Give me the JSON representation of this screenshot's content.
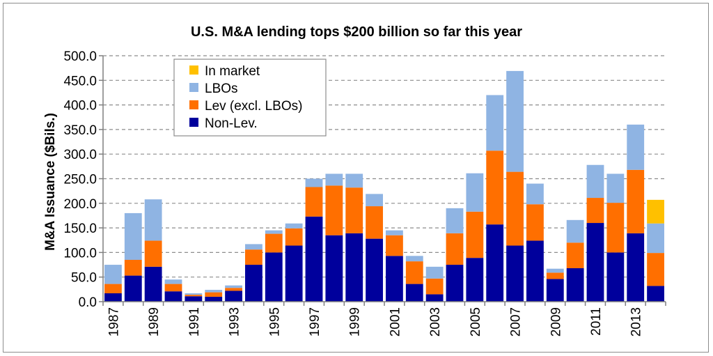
{
  "chart_data": {
    "type": "bar",
    "stacked": true,
    "title": "U.S. M&A lending tops $200 billion so far this year",
    "ylabel": "M&A Issuance ($Bils.)",
    "xlabel": "",
    "ylim": [
      0,
      500
    ],
    "yticks": [
      "0.0",
      "50.0",
      "100.0",
      "150.0",
      "200.0",
      "250.0",
      "300.0",
      "350.0",
      "400.0",
      "450.0",
      "500.0"
    ],
    "grid": true,
    "legend_position": "top-left",
    "categories": [
      "1987",
      "1988",
      "1989",
      "1990",
      "1991",
      "1992",
      "1993",
      "1994",
      "1995",
      "1996",
      "1997",
      "1998",
      "1999",
      "2000",
      "2001",
      "2002",
      "2003",
      "2004",
      "2005",
      "2006",
      "2007",
      "2008",
      "2009",
      "2010",
      "2011",
      "2012",
      "2013",
      "2014"
    ],
    "xtick_labels": [
      "1987",
      "",
      "1989",
      "",
      "1991",
      "",
      "1993",
      "",
      "1995",
      "",
      "1997",
      "",
      "1999",
      "",
      "2001",
      "",
      "2003",
      "",
      "2005",
      "",
      "2007",
      "",
      "2009",
      "",
      "2011",
      "",
      "2013",
      ""
    ],
    "series": [
      {
        "name": "Non-Lev.",
        "color": "#00009c",
        "values": [
          17,
          53,
          71,
          21,
          11,
          10,
          22,
          75,
          100,
          114,
          173,
          135,
          139,
          128,
          93,
          36,
          15,
          75,
          89,
          157,
          114,
          124,
          46,
          68,
          160,
          100,
          139,
          32
        ]
      },
      {
        "name": "Lev (excl. LBOs)",
        "color": "#ff6f00",
        "values": [
          19,
          32,
          53,
          15,
          3,
          9,
          6,
          31,
          38,
          35,
          60,
          101,
          93,
          66,
          42,
          46,
          32,
          64,
          94,
          150,
          150,
          74,
          13,
          52,
          51,
          101,
          129,
          67
        ]
      },
      {
        "name": "LBOs",
        "color": "#8fb4e3",
        "values": [
          39,
          95,
          84,
          9,
          3,
          5,
          5,
          11,
          7,
          10,
          17,
          24,
          28,
          25,
          10,
          11,
          24,
          51,
          78,
          113,
          205,
          42,
          8,
          46,
          67,
          59,
          92,
          60
        ]
      },
      {
        "name": "In market",
        "color": "#ffc000",
        "values": [
          0,
          0,
          0,
          0,
          0,
          0,
          0,
          0,
          0,
          0,
          0,
          0,
          0,
          0,
          0,
          0,
          0,
          0,
          0,
          0,
          0,
          0,
          0,
          0,
          0,
          0,
          0,
          48
        ]
      }
    ],
    "legend_order": [
      "In market",
      "LBOs",
      "Lev (excl. LBOs)",
      "Non-Lev."
    ]
  }
}
